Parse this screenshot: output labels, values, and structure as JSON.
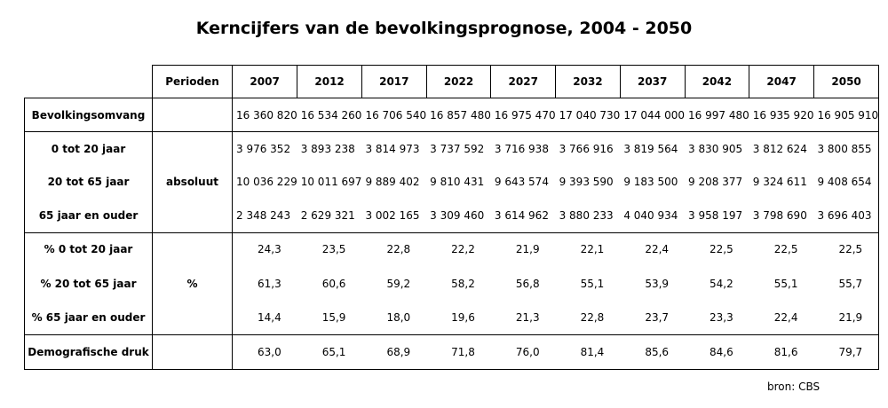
{
  "title": "Kerncijfers van de bevolkingsprognose, 2004 - 2050",
  "header": {
    "perioden": "Perioden",
    "years": [
      "2007",
      "2012",
      "2017",
      "2022",
      "2027",
      "2032",
      "2037",
      "2042",
      "2047",
      "2050"
    ]
  },
  "units": {
    "absolute": "absoluut",
    "percent": "%"
  },
  "rows": [
    {
      "label": "Bevolkingsomvang",
      "values": [
        "16 360 820",
        "16 534 260",
        "16 706 540",
        "16 857 480",
        "16 975 470",
        "17 040 730",
        "17 044 000",
        "16 997 480",
        "16 935 920",
        "16 905 910"
      ]
    },
    {
      "label": "0 tot 20 jaar",
      "values": [
        "3 976 352",
        "3 893 238",
        "3 814 973",
        "3 737 592",
        "3 716 938",
        "3 766 916",
        "3 819 564",
        "3 830 905",
        "3 812 624",
        "3 800 855"
      ]
    },
    {
      "label": "20 tot 65 jaar",
      "values": [
        "10 036 229",
        "10 011 697",
        "9 889 402",
        "9 810 431",
        "9 643 574",
        "9 393 590",
        "9 183 500",
        "9 208 377",
        "9 324 611",
        "9 408 654"
      ]
    },
    {
      "label": "65 jaar en ouder",
      "values": [
        "2 348 243",
        "2 629 321",
        "3 002 165",
        "3 309 460",
        "3 614 962",
        "3 880 233",
        "4 040 934",
        "3 958 197",
        "3 798 690",
        "3 696 403"
      ]
    },
    {
      "label": "% 0 tot 20 jaar",
      "values": [
        "24,3",
        "23,5",
        "22,8",
        "22,2",
        "21,9",
        "22,1",
        "22,4",
        "22,5",
        "22,5",
        "22,5"
      ]
    },
    {
      "label": "% 20 tot 65 jaar",
      "values": [
        "61,3",
        "60,6",
        "59,2",
        "58,2",
        "56,8",
        "55,1",
        "53,9",
        "54,2",
        "55,1",
        "55,7"
      ]
    },
    {
      "label": "% 65 jaar en ouder",
      "values": [
        "14,4",
        "15,9",
        "18,0",
        "19,6",
        "21,3",
        "22,8",
        "23,7",
        "23,3",
        "22,4",
        "21,9"
      ]
    },
    {
      "label": "Demografische druk",
      "values": [
        "63,0",
        "65,1",
        "68,9",
        "71,8",
        "76,0",
        "81,4",
        "85,6",
        "84,6",
        "81,6",
        "79,7"
      ]
    }
  ],
  "source": "bron: CBS"
}
